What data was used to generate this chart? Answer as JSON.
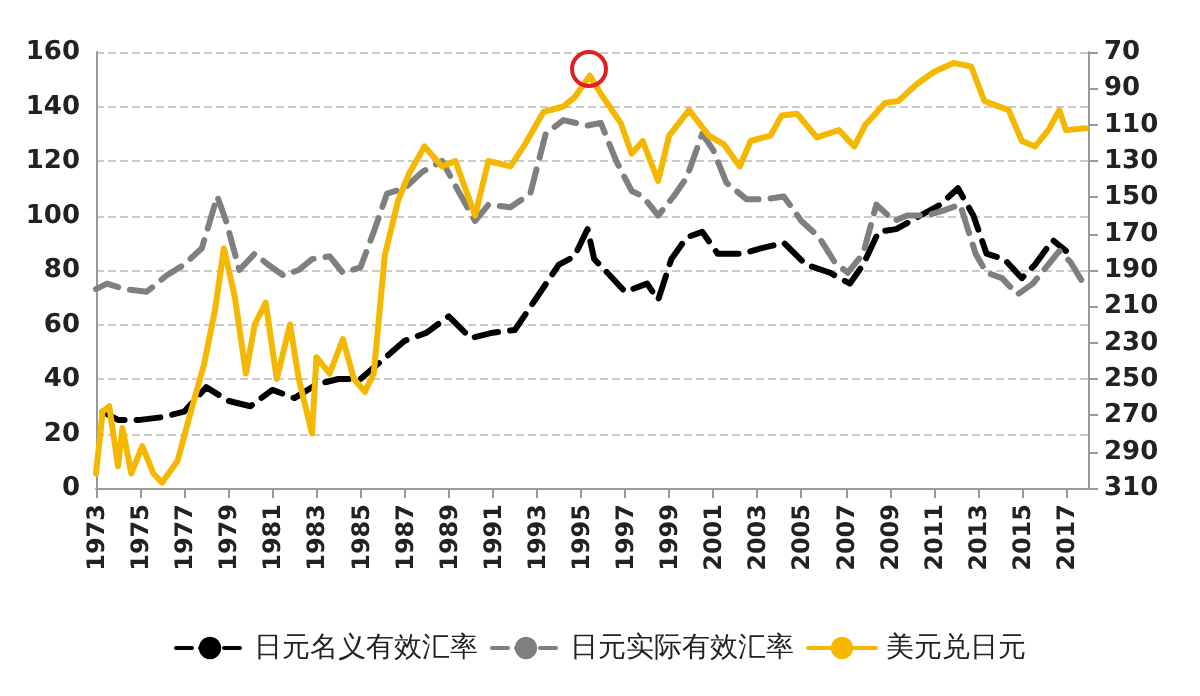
{
  "chart_data": {
    "type": "line",
    "xlim": [
      1973,
      2018
    ],
    "xticks": [
      1973,
      1975,
      1977,
      1979,
      1981,
      1983,
      1985,
      1987,
      1989,
      1991,
      1993,
      1995,
      1997,
      1999,
      2001,
      2003,
      2005,
      2007,
      2009,
      2011,
      2013,
      2015,
      2017
    ],
    "ylim": [
      0,
      160
    ],
    "yticks": [
      0,
      20,
      40,
      60,
      80,
      100,
      120,
      140,
      160
    ],
    "y2lim": [
      310,
      70
    ],
    "y2ticks": [
      310,
      290,
      270,
      250,
      230,
      210,
      190,
      170,
      150,
      130,
      110,
      90,
      70
    ],
    "grid": "y",
    "legend": "bottom",
    "marker": "none",
    "series": [
      {
        "name": "日元名义有效汇率",
        "color": "#000000",
        "line_style": "dashed",
        "x": [
          1973.3,
          1974,
          1975,
          1976,
          1977,
          1978,
          1979,
          1980,
          1981,
          1982,
          1983,
          1984,
          1985,
          1986,
          1987,
          1988,
          1989,
          1990,
          1991,
          1992,
          1993,
          1994,
          1994.7,
          1995.3,
          1995.6,
          1996.2,
          1997,
          1998,
          1998.5,
          1999.1,
          1999.8,
          2000.5,
          2001.2,
          2002.3,
          2003.2,
          2004.2,
          2005.2,
          2006.3,
          2007.2,
          2007.8,
          2008.5,
          2009.3,
          2010.4,
          2011.3,
          2012.1,
          2012.8,
          2013.4,
          2014.2,
          2015,
          2015.6,
          2016.4,
          2017
        ],
        "values": [
          28,
          25,
          25,
          26,
          28,
          37,
          32,
          30,
          36,
          33,
          38,
          40,
          40,
          47,
          54,
          57,
          63,
          55,
          57,
          58,
          70,
          82,
          85,
          95,
          84,
          79,
          72,
          75,
          69,
          84,
          92,
          94,
          86,
          86,
          88,
          90,
          82,
          79,
          75,
          82,
          94,
          95,
          100,
          104,
          110,
          100,
          86,
          84,
          77,
          82,
          91,
          87
        ]
      },
      {
        "name": "日元实际有效汇率",
        "color": "#7f7f7f",
        "line_style": "dashed",
        "x": [
          1973,
          1973.5,
          1974.3,
          1975.3,
          1976.2,
          1977,
          1977.8,
          1978.5,
          1978.9,
          1979.5,
          1980.2,
          1980.8,
          1981.5,
          1982.2,
          1982.8,
          1983.6,
          1984.2,
          1985,
          1985.6,
          1986.2,
          1987,
          1987.8,
          1988.7,
          1989.5,
          1990.2,
          1990.8,
          1991.8,
          1992.7,
          1993.4,
          1994.2,
          1995.3,
          1995.9,
          1996.6,
          1997.3,
          1997.8,
          1998.5,
          1999.2,
          1999.8,
          2000.5,
          2001,
          2001.6,
          2002.5,
          2003.4,
          2004.2,
          2005,
          2005.8,
          2006.5,
          2007.1,
          2007.8,
          2008.4,
          2009.2,
          2009.8,
          2010.7,
          2011.5,
          2012.2,
          2012.9,
          2013.4,
          2014.1,
          2014.8,
          2015.5,
          2016.2,
          2016.7,
          2017.2,
          2017.8
        ],
        "values": [
          73,
          75,
          73,
          72,
          78,
          82,
          88,
          107,
          98,
          80,
          86,
          82,
          78,
          80,
          84,
          85,
          79,
          81,
          94,
          108,
          110,
          116,
          120,
          108,
          98,
          104,
          103,
          108,
          130,
          135,
          133,
          134,
          120,
          109,
          107,
          100,
          107,
          114,
          130,
          124,
          112,
          106,
          106,
          107,
          98,
          92,
          83,
          79,
          86,
          104,
          98,
          100,
          100,
          102,
          104,
          86,
          79,
          77,
          71,
          75,
          82,
          87,
          83,
          75
        ]
      },
      {
        "name": "美元兑日元",
        "color": "#f5b800",
        "line_style": "solid",
        "axis": "y2",
        "x": [
          1973,
          1973.3,
          1973.6,
          1974,
          1974.2,
          1974.6,
          1975.1,
          1975.6,
          1976,
          1976.7,
          1977.3,
          1977.9,
          1978.4,
          1978.8,
          1979.3,
          1979.8,
          1980.2,
          1980.7,
          1981.2,
          1981.8,
          1982.2,
          1982.8,
          1983,
          1983.6,
          1984.2,
          1984.7,
          1985.2,
          1985.6,
          1986.1,
          1986.7,
          1987.2,
          1987.9,
          1988.7,
          1989.3,
          1990.2,
          1990.8,
          1991.8,
          1992.4,
          1993.3,
          1994.2,
          1994.7,
          1995.4,
          1995.9,
          1996.8,
          1997.3,
          1997.8,
          1998.5,
          1999,
          1999.9,
          2000.8,
          2001.5,
          2002.2,
          2002.7,
          2003.6,
          2004.1,
          2004.8,
          2005.7,
          2006.7,
          2007.4,
          2007.9,
          2008.8,
          2009.4,
          2010.2,
          2011,
          2011.9,
          2012.7,
          2013.3,
          2014.4,
          2015,
          2015.6,
          2016.2,
          2016.7,
          2017,
          2017.9
        ],
        "values": [
          302,
          268,
          265,
          298,
          277,
          302,
          287,
          302,
          307,
          295,
          268,
          242,
          212,
          178,
          205,
          247,
          220,
          208,
          250,
          220,
          250,
          280,
          238,
          247,
          228,
          250,
          257,
          247,
          182,
          152,
          137,
          122,
          133,
          130,
          160,
          130,
          133,
          122,
          103,
          100,
          95,
          83,
          93,
          109,
          126,
          119,
          141,
          116,
          102,
          116,
          121,
          133,
          119,
          116,
          105,
          104,
          117,
          113,
          122,
          110,
          98,
          97,
          88,
          81,
          76,
          78,
          97,
          102,
          119,
          122,
          113,
          102,
          113,
          112
        ]
      }
    ]
  }
}
